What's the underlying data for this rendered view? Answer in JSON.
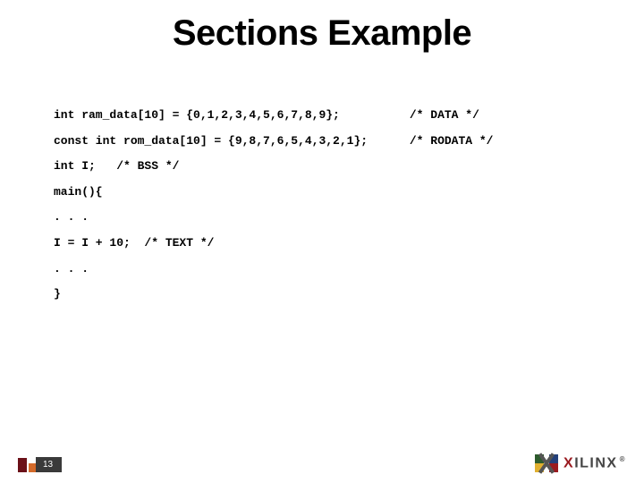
{
  "slide": {
    "title": "Sections Example",
    "page_number": "13",
    "background_color": "#ffffff",
    "title_fontsize": 40,
    "title_color": "#000000"
  },
  "code": {
    "font_family": "Courier New",
    "font_size": 13,
    "font_weight": "bold",
    "color": "#000000",
    "lines": [
      "int ram_data[10] = {0,1,2,3,4,5,6,7,8,9};          /* DATA */",
      "",
      "const int rom_data[10] = {9,8,7,6,5,4,3,2,1};      /* RODATA */",
      "",
      "int I;   /* BSS */",
      "",
      "main(){",
      "",
      ". . .",
      "I = I + 10;  /* TEXT */",
      ". . .",
      "",
      "}"
    ]
  },
  "logo": {
    "brand_lead": "X",
    "brand_rest": "ILINX",
    "registered": "®",
    "colors": {
      "top_left": "#2d5b2d",
      "top_right": "#23407a",
      "bottom_left": "#e0b030",
      "bottom_right": "#9a1b20",
      "cross": "#555555",
      "lead_text": "#9a1b20",
      "rest_text": "#444444"
    }
  },
  "footer_shapes": {
    "left_bar_color": "#6b1018",
    "small_square_color": "#d46a2a",
    "badge_bg": "#3a3a3a",
    "badge_text_color": "#ffffff"
  }
}
